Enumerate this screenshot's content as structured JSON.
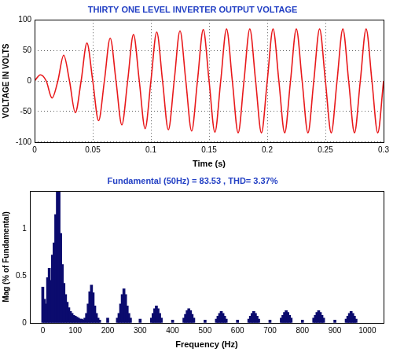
{
  "chart_data": [
    {
      "type": "line",
      "title": "THIRTY ONE LEVEL INVERTER OUTPUT VOLTAGE",
      "x_label": "Time (s)",
      "y_label": "VOLTAGE IN VOLTS",
      "x": [
        0,
        0.005,
        0.01,
        0.015,
        0.02,
        0.025,
        0.03,
        0.035,
        0.04,
        0.045,
        0.05,
        0.055,
        0.06,
        0.065,
        0.07,
        0.075,
        0.08,
        0.085,
        0.09,
        0.095,
        0.1,
        0.105,
        0.11,
        0.115,
        0.12,
        0.125,
        0.13,
        0.135,
        0.14,
        0.145,
        0.15,
        0.155,
        0.16,
        0.165,
        0.17,
        0.175,
        0.18,
        0.185,
        0.19,
        0.195,
        0.2,
        0.205,
        0.21,
        0.215,
        0.22,
        0.225,
        0.23,
        0.235,
        0.24,
        0.245,
        0.25,
        0.255,
        0.26,
        0.265,
        0.27,
        0.275,
        0.28,
        0.285,
        0.29,
        0.295,
        0.3
      ],
      "values": [
        0,
        10,
        0,
        -28,
        0,
        42,
        0,
        -52,
        0,
        62,
        0,
        -65,
        0,
        70,
        0,
        -72,
        0,
        76,
        0,
        -78,
        0,
        80,
        0,
        -80,
        0,
        82,
        0,
        -82,
        0,
        84,
        0,
        -84,
        0,
        85,
        0,
        -85,
        0,
        85,
        0,
        -85,
        0,
        85,
        0,
        -85,
        0,
        85,
        0,
        -85,
        0,
        85,
        0,
        -85,
        0,
        85,
        0,
        -85,
        0,
        85,
        0,
        -85,
        0
      ],
      "color": "#e8191b",
      "line_style": "solid",
      "xlim": [
        0,
        0.3
      ],
      "xticks": [
        0,
        0.05,
        0.1,
        0.15,
        0.2,
        0.25,
        0.3
      ],
      "ylim": [
        -100,
        100
      ],
      "yticks": [
        -100,
        -50,
        0,
        50,
        100
      ],
      "grid": true
    },
    {
      "type": "bar",
      "title": "Fundamental (50Hz) = 83.53 , THD= 3.37%",
      "x_label": "Frequency (Hz)",
      "y_label": "Mag (% of Fundamental)",
      "x": [
        0,
        5,
        10,
        15,
        20,
        25,
        30,
        35,
        40,
        45,
        50,
        55,
        60,
        65,
        70,
        75,
        80,
        85,
        90,
        95,
        100,
        105,
        110,
        115,
        120,
        125,
        130,
        135,
        140,
        145,
        150,
        155,
        160,
        165,
        170,
        175,
        200,
        230,
        235,
        240,
        245,
        250,
        255,
        260,
        265,
        270,
        300,
        335,
        340,
        345,
        350,
        355,
        360,
        365,
        400,
        435,
        440,
        445,
        450,
        455,
        460,
        465,
        500,
        535,
        540,
        545,
        550,
        555,
        560,
        565,
        600,
        635,
        640,
        645,
        650,
        655,
        660,
        665,
        700,
        735,
        740,
        745,
        750,
        755,
        760,
        765,
        800,
        835,
        840,
        845,
        850,
        855,
        860,
        865,
        900,
        935,
        940,
        945,
        950,
        955,
        960,
        965
      ],
      "values": [
        0.38,
        0.25,
        0.2,
        0.48,
        0.58,
        0.45,
        0.72,
        0.85,
        1.15,
        1.4,
        1.4,
        0.95,
        0.62,
        0.42,
        0.3,
        0.22,
        0.16,
        0.12,
        0.1,
        0.08,
        0.07,
        0.06,
        0.05,
        0.04,
        0.04,
        0.03,
        0.05,
        0.1,
        0.2,
        0.33,
        0.4,
        0.32,
        0.18,
        0.1,
        0.05,
        0.03,
        0.05,
        0.05,
        0.1,
        0.2,
        0.3,
        0.36,
        0.3,
        0.18,
        0.1,
        0.05,
        0.04,
        0.05,
        0.1,
        0.15,
        0.18,
        0.15,
        0.1,
        0.05,
        0.03,
        0.05,
        0.09,
        0.13,
        0.15,
        0.13,
        0.09,
        0.05,
        0.03,
        0.04,
        0.07,
        0.1,
        0.12,
        0.1,
        0.07,
        0.04,
        0.03,
        0.04,
        0.07,
        0.1,
        0.12,
        0.1,
        0.07,
        0.04,
        0.03,
        0.05,
        0.08,
        0.11,
        0.13,
        0.11,
        0.08,
        0.05,
        0.03,
        0.05,
        0.08,
        0.11,
        0.13,
        0.11,
        0.08,
        0.05,
        0.03,
        0.04,
        0.07,
        0.1,
        0.12,
        0.1,
        0.07,
        0.04
      ],
      "color": "#0b0b6e",
      "xlim": [
        -40,
        1050
      ],
      "xticks": [
        0,
        100,
        200,
        300,
        400,
        500,
        600,
        700,
        800,
        900,
        1000
      ],
      "ylim": [
        0,
        1.4
      ],
      "yticks": [
        0,
        0.5,
        1
      ],
      "grid": false
    }
  ]
}
